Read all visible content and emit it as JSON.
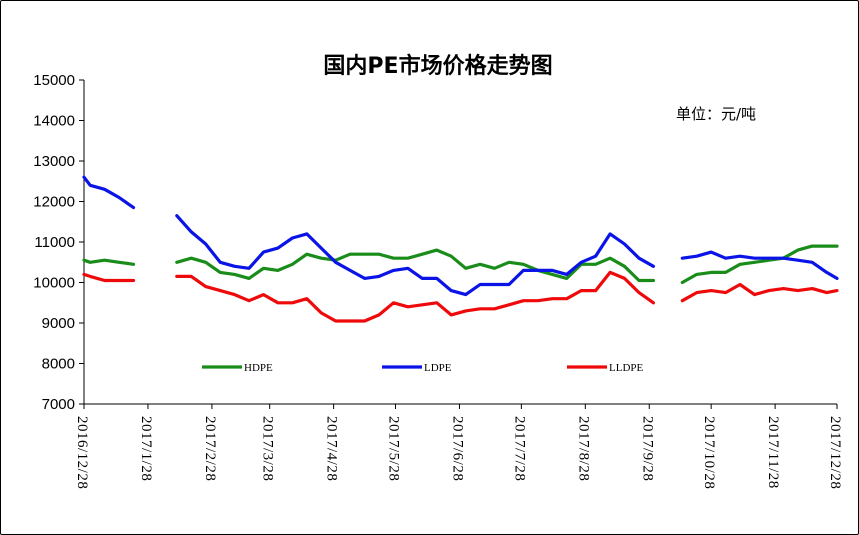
{
  "chart_data": {
    "type": "line",
    "title": "国内PE市场价格走势图",
    "unit_label": "单位：元/吨",
    "xlabel": "",
    "ylabel": "",
    "ylim": [
      7000,
      15000
    ],
    "y_ticks": [
      7000,
      8000,
      9000,
      10000,
      11000,
      12000,
      13000,
      14000,
      15000
    ],
    "x_tick_labels": [
      "2016/12/28",
      "2017/1/28",
      "2017/2/28",
      "2017/3/28",
      "2017/4/28",
      "2017/5/28",
      "2017/6/28",
      "2017/7/28",
      "2017/8/28",
      "2017/9/28",
      "2017/10/28",
      "2017/11/28",
      "2017/12/28"
    ],
    "x_tick_dates": [
      "2016-12-28",
      "2017-01-28",
      "2017-02-28",
      "2017-03-28",
      "2017-04-28",
      "2017-05-28",
      "2017-06-28",
      "2017-07-28",
      "2017-08-28",
      "2017-09-28",
      "2017-10-28",
      "2017-11-28",
      "2017-12-28"
    ],
    "legend_position": "bottom-inside",
    "grid": false,
    "series": [
      {
        "name": "HDPE",
        "color": "#1a8c1a",
        "points": [
          [
            "2016-12-28",
            10550
          ],
          [
            "2016-12-31",
            10500
          ],
          [
            "2017-01-07",
            10550
          ],
          [
            "2017-01-14",
            10500
          ],
          [
            "2017-01-21",
            10450
          ],
          null,
          [
            "2017-02-11",
            10500
          ],
          [
            "2017-02-18",
            10600
          ],
          [
            "2017-02-25",
            10500
          ],
          [
            "2017-03-04",
            10250
          ],
          [
            "2017-03-11",
            10200
          ],
          [
            "2017-03-18",
            10100
          ],
          [
            "2017-03-25",
            10350
          ],
          [
            "2017-04-01",
            10300
          ],
          [
            "2017-04-08",
            10450
          ],
          [
            "2017-04-15",
            10700
          ],
          [
            "2017-04-22",
            10600
          ],
          [
            "2017-04-29",
            10550
          ],
          [
            "2017-05-06",
            10700
          ],
          [
            "2017-05-13",
            10700
          ],
          [
            "2017-05-20",
            10700
          ],
          [
            "2017-05-27",
            10600
          ],
          [
            "2017-06-03",
            10600
          ],
          [
            "2017-06-10",
            10700
          ],
          [
            "2017-06-17",
            10800
          ],
          [
            "2017-06-24",
            10650
          ],
          [
            "2017-07-01",
            10350
          ],
          [
            "2017-07-08",
            10450
          ],
          [
            "2017-07-15",
            10350
          ],
          [
            "2017-07-22",
            10500
          ],
          [
            "2017-07-29",
            10450
          ],
          [
            "2017-08-05",
            10300
          ],
          [
            "2017-08-12",
            10200
          ],
          [
            "2017-08-19",
            10100
          ],
          [
            "2017-08-26",
            10450
          ],
          [
            "2017-09-02",
            10450
          ],
          [
            "2017-09-09",
            10600
          ],
          [
            "2017-09-16",
            10400
          ],
          [
            "2017-09-23",
            10050
          ],
          [
            "2017-09-30",
            10050
          ],
          null,
          [
            "2017-10-14",
            10000
          ],
          [
            "2017-10-21",
            10200
          ],
          [
            "2017-10-28",
            10250
          ],
          [
            "2017-11-04",
            10250
          ],
          [
            "2017-11-11",
            10450
          ],
          [
            "2017-11-18",
            10500
          ],
          [
            "2017-11-25",
            10550
          ],
          [
            "2017-12-02",
            10600
          ],
          [
            "2017-12-09",
            10800
          ],
          [
            "2017-12-16",
            10900
          ],
          [
            "2017-12-23",
            10900
          ],
          [
            "2017-12-28",
            10900
          ]
        ]
      },
      {
        "name": "LDPE",
        "color": "#0a14e6",
        "points": [
          [
            "2016-12-28",
            12600
          ],
          [
            "2016-12-31",
            12400
          ],
          [
            "2017-01-07",
            12300
          ],
          [
            "2017-01-14",
            12100
          ],
          [
            "2017-01-21",
            11850
          ],
          null,
          [
            "2017-02-11",
            11650
          ],
          [
            "2017-02-18",
            11250
          ],
          [
            "2017-02-25",
            10950
          ],
          [
            "2017-03-04",
            10500
          ],
          [
            "2017-03-11",
            10400
          ],
          [
            "2017-03-18",
            10350
          ],
          [
            "2017-03-25",
            10750
          ],
          [
            "2017-04-01",
            10850
          ],
          [
            "2017-04-08",
            11100
          ],
          [
            "2017-04-15",
            11200
          ],
          [
            "2017-04-22",
            10850
          ],
          [
            "2017-04-29",
            10500
          ],
          [
            "2017-05-06",
            10300
          ],
          [
            "2017-05-13",
            10100
          ],
          [
            "2017-05-20",
            10150
          ],
          [
            "2017-05-27",
            10300
          ],
          [
            "2017-06-03",
            10350
          ],
          [
            "2017-06-10",
            10100
          ],
          [
            "2017-06-17",
            10100
          ],
          [
            "2017-06-24",
            9800
          ],
          [
            "2017-07-01",
            9700
          ],
          [
            "2017-07-08",
            9950
          ],
          [
            "2017-07-15",
            9950
          ],
          [
            "2017-07-22",
            9950
          ],
          [
            "2017-07-29",
            10300
          ],
          [
            "2017-08-05",
            10300
          ],
          [
            "2017-08-12",
            10300
          ],
          [
            "2017-08-19",
            10200
          ],
          [
            "2017-08-26",
            10500
          ],
          [
            "2017-09-02",
            10650
          ],
          [
            "2017-09-09",
            11200
          ],
          [
            "2017-09-16",
            10950
          ],
          [
            "2017-09-23",
            10600
          ],
          [
            "2017-09-30",
            10400
          ],
          null,
          [
            "2017-10-14",
            10600
          ],
          [
            "2017-10-21",
            10650
          ],
          [
            "2017-10-28",
            10750
          ],
          [
            "2017-11-04",
            10600
          ],
          [
            "2017-11-11",
            10650
          ],
          [
            "2017-11-18",
            10600
          ],
          [
            "2017-11-25",
            10600
          ],
          [
            "2017-12-02",
            10600
          ],
          [
            "2017-12-09",
            10550
          ],
          [
            "2017-12-16",
            10500
          ],
          [
            "2017-12-23",
            10250
          ],
          [
            "2017-12-28",
            10100
          ]
        ]
      },
      {
        "name": "LLDPE",
        "color": "#ee0a0a",
        "points": [
          [
            "2016-12-28",
            10200
          ],
          [
            "2016-12-31",
            10150
          ],
          [
            "2017-01-07",
            10050
          ],
          [
            "2017-01-14",
            10050
          ],
          [
            "2017-01-21",
            10050
          ],
          null,
          [
            "2017-02-11",
            10150
          ],
          [
            "2017-02-18",
            10150
          ],
          [
            "2017-02-25",
            9900
          ],
          [
            "2017-03-04",
            9800
          ],
          [
            "2017-03-11",
            9700
          ],
          [
            "2017-03-18",
            9550
          ],
          [
            "2017-03-25",
            9700
          ],
          [
            "2017-04-01",
            9500
          ],
          [
            "2017-04-08",
            9500
          ],
          [
            "2017-04-15",
            9600
          ],
          [
            "2017-04-22",
            9250
          ],
          [
            "2017-04-29",
            9050
          ],
          [
            "2017-05-06",
            9050
          ],
          [
            "2017-05-13",
            9050
          ],
          [
            "2017-05-20",
            9200
          ],
          [
            "2017-05-27",
            9500
          ],
          [
            "2017-06-03",
            9400
          ],
          [
            "2017-06-10",
            9450
          ],
          [
            "2017-06-17",
            9500
          ],
          [
            "2017-06-24",
            9200
          ],
          [
            "2017-07-01",
            9300
          ],
          [
            "2017-07-08",
            9350
          ],
          [
            "2017-07-15",
            9350
          ],
          [
            "2017-07-22",
            9450
          ],
          [
            "2017-07-29",
            9550
          ],
          [
            "2017-08-05",
            9550
          ],
          [
            "2017-08-12",
            9600
          ],
          [
            "2017-08-19",
            9600
          ],
          [
            "2017-08-26",
            9800
          ],
          [
            "2017-09-02",
            9800
          ],
          [
            "2017-09-09",
            10250
          ],
          [
            "2017-09-16",
            10100
          ],
          [
            "2017-09-23",
            9750
          ],
          [
            "2017-09-30",
            9500
          ],
          null,
          [
            "2017-10-14",
            9550
          ],
          [
            "2017-10-21",
            9750
          ],
          [
            "2017-10-28",
            9800
          ],
          [
            "2017-11-04",
            9750
          ],
          [
            "2017-11-11",
            9950
          ],
          [
            "2017-11-18",
            9700
          ],
          [
            "2017-11-25",
            9800
          ],
          [
            "2017-12-02",
            9850
          ],
          [
            "2017-12-09",
            9800
          ],
          [
            "2017-12-16",
            9850
          ],
          [
            "2017-12-23",
            9750
          ],
          [
            "2017-12-28",
            9800
          ]
        ]
      }
    ]
  }
}
